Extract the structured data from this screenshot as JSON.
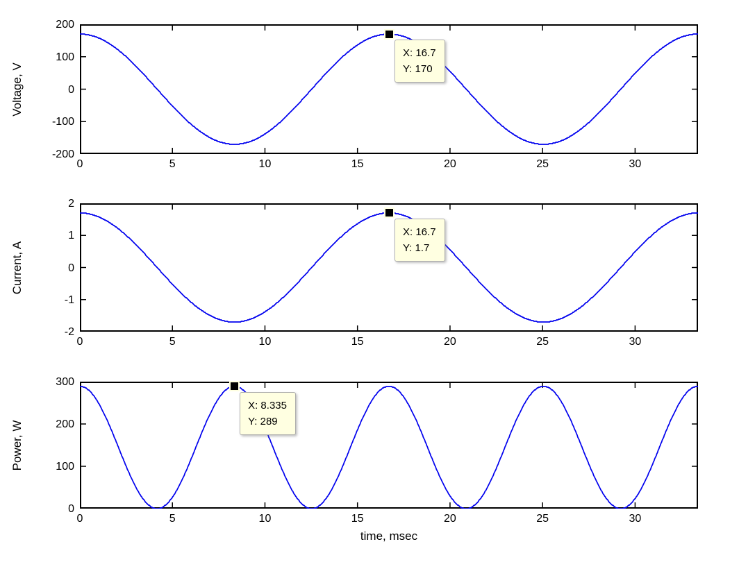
{
  "figure": {
    "background": "#ffffff",
    "axis_color": "#000000",
    "line_color": "#0000EE",
    "datatip_bg": "#FFFFE1",
    "datatip_border": "#ADADAD",
    "datatip_marker_color": "#000000"
  },
  "chart_data": [
    {
      "type": "line",
      "title": "",
      "xlabel": "",
      "ylabel": "Voltage, V",
      "xlim": [
        0,
        33.4
      ],
      "ylim": [
        -200,
        200
      ],
      "xticks": [
        0,
        5,
        10,
        15,
        20,
        25,
        30
      ],
      "yticks": [
        200,
        100,
        0,
        -100,
        -200
      ],
      "grid": false,
      "legend": null,
      "series": [
        {
          "name": "voltage",
          "waveform": "cosine",
          "amplitude": 170,
          "period": 16.7,
          "color": "#0000EE"
        }
      ],
      "datatip": {
        "x": 16.7,
        "y": 170,
        "lines": [
          "X: 16.7",
          "Y: 170"
        ]
      }
    },
    {
      "type": "line",
      "title": "",
      "xlabel": "",
      "ylabel": "Current, A",
      "xlim": [
        0,
        33.4
      ],
      "ylim": [
        -2,
        2
      ],
      "xticks": [
        0,
        5,
        10,
        15,
        20,
        25,
        30
      ],
      "yticks": [
        2,
        1,
        0,
        -1,
        -2
      ],
      "grid": false,
      "legend": null,
      "series": [
        {
          "name": "current",
          "waveform": "cosine",
          "amplitude": 1.7,
          "period": 16.7,
          "color": "#0000EE"
        }
      ],
      "datatip": {
        "x": 16.7,
        "y": 1.7,
        "lines": [
          "X: 16.7",
          "Y: 1.7"
        ]
      }
    },
    {
      "type": "line",
      "title": "",
      "xlabel": "time, msec",
      "ylabel": "Power, W",
      "xlim": [
        0,
        33.4
      ],
      "ylim": [
        0,
        300
      ],
      "xticks": [
        0,
        5,
        10,
        15,
        20,
        25,
        30
      ],
      "yticks": [
        300,
        200,
        100,
        0
      ],
      "grid": false,
      "legend": null,
      "series": [
        {
          "name": "power",
          "waveform": "cosine-squared",
          "amplitude": 289,
          "period": 16.7,
          "color": "#0000EE"
        }
      ],
      "datatip": {
        "x": 8.335,
        "y": 289,
        "lines": [
          "X: 8.335",
          "Y: 289"
        ]
      }
    }
  ]
}
